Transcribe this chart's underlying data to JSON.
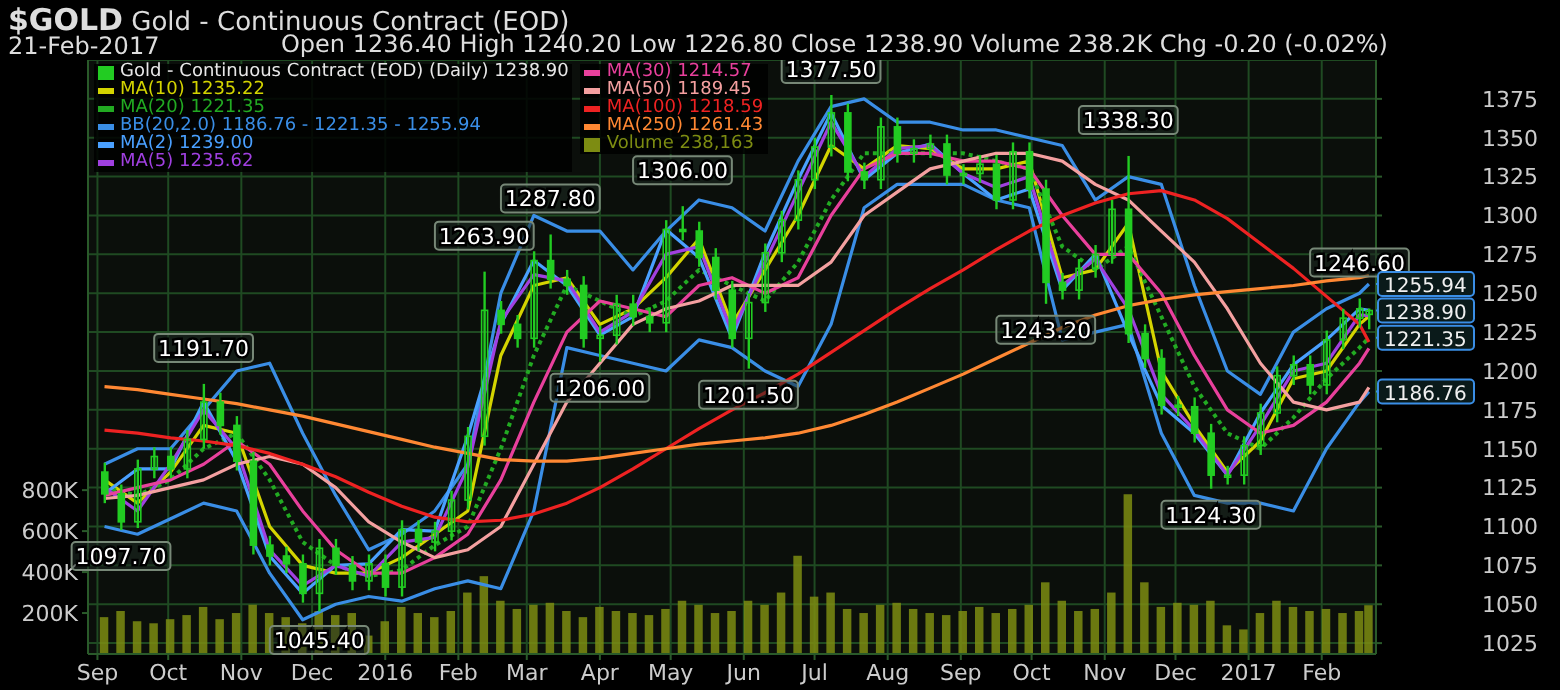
{
  "chart_data": {
    "type": "candlestick",
    "title": "$GOLD Gold - Continuous Contract (EOD)",
    "subtitle": "21-Feb-2017",
    "annotations": [
      "Open 1236.40 High 1240.20 Low 1226.80 Close 1238.90 Volume 238.2K Chg -0.20 (-0.02%)",
      {
        "text": "1097.70",
        "x": "2015-09-11",
        "y": 1097.7
      },
      {
        "text": "1191.70",
        "x": "2015-10-16",
        "y": 1191.7
      },
      {
        "text": "1045.40",
        "x": "2015-12-04",
        "y": 1045.4
      },
      {
        "text": "1263.90",
        "x": "2016-02-12",
        "y": 1263.9
      },
      {
        "text": "1287.80",
        "x": "2016-03-11",
        "y": 1287.8
      },
      {
        "text": "1206.00",
        "x": "2016-04-01",
        "y": 1206
      },
      {
        "text": "1306.00",
        "x": "2016-05-06",
        "y": 1306
      },
      {
        "text": "1201.50",
        "x": "2016-06-03",
        "y": 1201.5
      },
      {
        "text": "1377.50",
        "x": "2016-07-08",
        "y": 1377.5
      },
      {
        "text": "1243.20",
        "x": "2016-10-07",
        "y": 1243.2
      },
      {
        "text": "1338.30",
        "x": "2016-11-11",
        "y": 1338.3
      },
      {
        "text": "1124.30",
        "x": "2016-12-16",
        "y": 1124.3
      },
      {
        "text": "1246.60",
        "x": "2017-02-17",
        "y": 1246.6
      },
      {
        "text": "1255.94",
        "x": "2017-02-24",
        "y": 1255.94
      },
      {
        "text": "1238.90",
        "x": "2017-02-24",
        "y": 1238.9
      },
      {
        "text": "1221.35",
        "x": "2017-02-24",
        "y": 1221.35
      },
      {
        "text": "1186.76",
        "x": "2017-02-24",
        "y": 1186.76
      }
    ],
    "x": [
      "2015-09-04",
      "2015-09-18",
      "2015-10-02",
      "2015-10-16",
      "2015-10-30",
      "2015-11-13",
      "2015-11-27",
      "2015-12-11",
      "2015-12-25",
      "2016-01-08",
      "2016-01-22",
      "2016-02-05",
      "2016-02-19",
      "2016-03-04",
      "2016-03-18",
      "2016-04-01",
      "2016-04-15",
      "2016-04-29",
      "2016-05-13",
      "2016-05-27",
      "2016-06-10",
      "2016-06-24",
      "2016-07-08",
      "2016-07-22",
      "2016-08-05",
      "2016-08-19",
      "2016-09-02",
      "2016-09-16",
      "2016-09-30",
      "2016-10-14",
      "2016-10-28",
      "2016-11-11",
      "2016-11-25",
      "2016-12-09",
      "2016-12-23",
      "2017-01-06",
      "2017-01-20",
      "2017-02-03",
      "2017-02-17",
      "2017-02-21"
    ],
    "series": [
      {
        "name": "Gold - Continuous Contract (EOD) (Daily) 1238.90",
        "color": "#22cc22",
        "x": [
          "2015-09-04",
          "2015-09-11",
          "2015-09-18",
          "2015-09-25",
          "2015-10-02",
          "2015-10-09",
          "2015-10-16",
          "2015-10-23",
          "2015-10-30",
          "2015-11-06",
          "2015-11-13",
          "2015-11-20",
          "2015-11-27",
          "2015-12-04",
          "2015-12-11",
          "2015-12-18",
          "2015-12-25",
          "2016-01-01",
          "2016-01-08",
          "2016-01-15",
          "2016-01-22",
          "2016-01-29",
          "2016-02-05",
          "2016-02-12",
          "2016-02-19",
          "2016-02-26",
          "2016-03-04",
          "2016-03-11",
          "2016-03-18",
          "2016-03-25",
          "2016-04-01",
          "2016-04-08",
          "2016-04-15",
          "2016-04-22",
          "2016-04-29",
          "2016-05-06",
          "2016-05-13",
          "2016-05-20",
          "2016-05-27",
          "2016-06-03",
          "2016-06-10",
          "2016-06-17",
          "2016-06-24",
          "2016-07-01",
          "2016-07-08",
          "2016-07-15",
          "2016-07-22",
          "2016-07-29",
          "2016-08-05",
          "2016-08-12",
          "2016-08-19",
          "2016-08-26",
          "2016-09-02",
          "2016-09-09",
          "2016-09-16",
          "2016-09-23",
          "2016-09-30",
          "2016-10-07",
          "2016-10-14",
          "2016-10-21",
          "2016-10-28",
          "2016-11-04",
          "2016-11-11",
          "2016-11-18",
          "2016-11-25",
          "2016-12-02",
          "2016-12-09",
          "2016-12-16",
          "2016-12-23",
          "2016-12-30",
          "2017-01-06",
          "2017-01-13",
          "2017-01-20",
          "2017-01-27",
          "2017-02-03",
          "2017-02-10",
          "2017-02-17",
          "2017-02-21"
        ],
        "ohlc": [
          [
            1135,
            1141,
            1115,
            1121
          ],
          [
            1121,
            1127,
            1097.7,
            1103
          ],
          [
            1103,
            1143,
            1099,
            1137
          ],
          [
            1137,
            1151,
            1131,
            1145
          ],
          [
            1145,
            1151,
            1131,
            1137
          ],
          [
            1137,
            1162,
            1131,
            1156
          ],
          [
            1156,
            1191.7,
            1150,
            1180
          ],
          [
            1180,
            1186,
            1159,
            1165
          ],
          [
            1165,
            1171,
            1136,
            1142
          ],
          [
            1142,
            1148,
            1082,
            1088
          ],
          [
            1088,
            1094,
            1075,
            1081
          ],
          [
            1081,
            1087,
            1070,
            1076
          ],
          [
            1076,
            1082,
            1051,
            1057
          ],
          [
            1057,
            1092,
            1045.4,
            1086
          ],
          [
            1086,
            1092,
            1069,
            1075
          ],
          [
            1075,
            1081,
            1059,
            1065
          ],
          [
            1065,
            1082,
            1059,
            1076
          ],
          [
            1076,
            1082,
            1055,
            1061
          ],
          [
            1061,
            1104,
            1055,
            1098
          ],
          [
            1098,
            1104,
            1084,
            1090
          ],
          [
            1090,
            1103,
            1084,
            1097
          ],
          [
            1097,
            1123,
            1091,
            1117
          ],
          [
            1117,
            1164,
            1111,
            1158
          ],
          [
            1158,
            1263.9,
            1152,
            1239
          ],
          [
            1239,
            1245,
            1224,
            1230
          ],
          [
            1230,
            1236,
            1215,
            1221
          ],
          [
            1221,
            1277,
            1215,
            1271
          ],
          [
            1271,
            1287.8,
            1253,
            1259
          ],
          [
            1259,
            1265,
            1249,
            1255
          ],
          [
            1255,
            1261,
            1215,
            1221
          ],
          [
            1221,
            1229,
            1206,
            1223
          ],
          [
            1223,
            1249,
            1217,
            1243
          ],
          [
            1243,
            1249,
            1229,
            1235
          ],
          [
            1235,
            1241,
            1225,
            1231
          ],
          [
            1231,
            1297,
            1225,
            1291
          ],
          [
            1291,
            1306,
            1284,
            1290
          ],
          [
            1290,
            1296,
            1267,
            1273
          ],
          [
            1273,
            1279,
            1246,
            1252
          ],
          [
            1252,
            1258,
            1215,
            1221
          ],
          [
            1221,
            1250,
            1201.5,
            1244
          ],
          [
            1244,
            1282,
            1238,
            1276
          ],
          [
            1276,
            1303,
            1270,
            1297
          ],
          [
            1297,
            1329,
            1291,
            1323
          ],
          [
            1323,
            1350,
            1317,
            1344
          ],
          [
            1344,
            1377.5,
            1338,
            1366
          ],
          [
            1366,
            1372,
            1322,
            1328
          ],
          [
            1328,
            1334,
            1317,
            1323
          ],
          [
            1323,
            1363,
            1317,
            1357
          ],
          [
            1357,
            1363,
            1334,
            1340
          ],
          [
            1340,
            1349,
            1334,
            1343
          ],
          [
            1343,
            1352,
            1337,
            1346
          ],
          [
            1346,
            1352,
            1320,
            1326
          ],
          [
            1326,
            1333,
            1320,
            1327
          ],
          [
            1327,
            1339,
            1321,
            1333
          ],
          [
            1333,
            1339,
            1304,
            1310
          ],
          [
            1310,
            1347,
            1304,
            1341
          ],
          [
            1341,
            1347,
            1311,
            1317
          ],
          [
            1317,
            1323,
            1243.2,
            1257
          ],
          [
            1257,
            1263,
            1246,
            1252
          ],
          [
            1252,
            1272,
            1246,
            1266
          ],
          [
            1266,
            1281,
            1260,
            1275
          ],
          [
            1275,
            1310,
            1269,
            1304
          ],
          [
            1304,
            1338.3,
            1218,
            1224
          ],
          [
            1224,
            1230,
            1202,
            1208
          ],
          [
            1208,
            1214,
            1172,
            1178
          ],
          [
            1178,
            1184,
            1171,
            1177
          ],
          [
            1177,
            1183,
            1154,
            1160
          ],
          [
            1160,
            1166,
            1124.3,
            1133
          ],
          [
            1133,
            1139,
            1127,
            1133
          ],
          [
            1133,
            1158,
            1127,
            1152
          ],
          [
            1152,
            1179,
            1146,
            1173
          ],
          [
            1173,
            1203,
            1167,
            1197
          ],
          [
            1197,
            1210,
            1191,
            1204
          ],
          [
            1204,
            1210,
            1185,
            1191
          ],
          [
            1191,
            1226,
            1185,
            1220
          ],
          [
            1220,
            1240,
            1214,
            1234
          ],
          [
            1234,
            1246.6,
            1228,
            1240
          ],
          [
            1236.4,
            1240.2,
            1226.8,
            1238.9
          ]
        ]
      },
      {
        "type": "line",
        "name": "MA(10) 1235.22",
        "color": "#d4d400",
        "values": [
          1130,
          1115,
          1135,
          1165,
          1160,
          1100,
          1075,
          1070,
          1070,
          1080,
          1095,
          1110,
          1210,
          1255,
          1260,
          1230,
          1240,
          1260,
          1285,
          1230,
          1265,
          1300,
          1345,
          1330,
          1345,
          1343,
          1330,
          1330,
          1335,
          1260,
          1265,
          1295,
          1200,
          1165,
          1135,
          1155,
          1195,
          1200,
          1230,
          1235.22
        ]
      },
      {
        "type": "line",
        "name": "MA(20) 1221.35",
        "color": "#22aa22",
        "line_style": "dotted",
        "values": [
          1125,
          1120,
          1130,
          1150,
          1160,
          1130,
          1090,
          1075,
          1068,
          1072,
          1088,
          1100,
          1150,
          1210,
          1255,
          1245,
          1235,
          1245,
          1265,
          1255,
          1245,
          1270,
          1310,
          1340,
          1340,
          1340,
          1340,
          1335,
          1330,
          1280,
          1265,
          1280,
          1235,
          1190,
          1160,
          1150,
          1170,
          1195,
          1215,
          1221.35
        ]
      },
      {
        "type": "line",
        "name": "BB(20,2.0) 1186.76 - 1221.35 - 1255.94",
        "color": "#3a8ee6",
        "values": [
          1140,
          1150,
          1150,
          1175,
          1200,
          1205,
          1160,
          1120,
          1085,
          1095,
          1110,
          1140,
          1250,
          1300,
          1290,
          1290,
          1265,
          1290,
          1310,
          1305,
          1290,
          1335,
          1370,
          1375,
          1360,
          1360,
          1355,
          1355,
          1350,
          1345,
          1310,
          1325,
          1320,
          1255,
          1200,
          1185,
          1225,
          1240,
          1250,
          1255.94
        ]
      },
      {
        "type": "line",
        "color": "#3a8ee6",
        "values": [
          1100,
          1095,
          1105,
          1115,
          1110,
          1070,
          1040,
          1050,
          1055,
          1052,
          1060,
          1065,
          1060,
          1110,
          1215,
          1210,
          1205,
          1200,
          1220,
          1215,
          1200,
          1190,
          1230,
          1305,
          1320,
          1320,
          1320,
          1310,
          1305,
          1220,
          1225,
          1230,
          1160,
          1120,
          1115,
          1115,
          1110,
          1150,
          1180,
          1186.76
        ]
      },
      {
        "type": "line",
        "name": "MA(2) 1239.00",
        "color": "#4aa0ff",
        "values": [
          1121,
          1137,
          1137,
          1180,
          1142,
          1081,
          1057,
          1075,
          1076,
          1098,
          1097,
          1158,
          1230,
          1271,
          1255,
          1223,
          1235,
          1291,
          1273,
          1221,
          1276,
          1323,
          1366,
          1323,
          1340,
          1346,
          1327,
          1310,
          1317,
          1252,
          1275,
          1224,
          1178,
          1160,
          1133,
          1173,
          1204,
          1220,
          1240,
          1239.0
        ]
      },
      {
        "type": "line",
        "name": "MA(5) 1235.62",
        "color": "#a040e0",
        "values": [
          1125,
          1110,
          1140,
          1175,
          1150,
          1085,
          1062,
          1075,
          1068,
          1090,
          1093,
          1138,
          1232,
          1262,
          1258,
          1225,
          1238,
          1275,
          1280,
          1225,
          1270,
          1315,
          1360,
          1325,
          1343,
          1345,
          1327,
          1318,
          1325,
          1255,
          1272,
          1240,
          1185,
          1162,
          1133,
          1165,
          1200,
          1205,
          1236,
          1235.62
        ]
      },
      {
        "type": "line",
        "name": "MA(30) 1214.57",
        "color": "#e8409c",
        "values": [
          1120,
          1125,
          1130,
          1140,
          1155,
          1140,
          1110,
          1085,
          1070,
          1070,
          1080,
          1095,
          1130,
          1180,
          1225,
          1245,
          1240,
          1235,
          1255,
          1260,
          1250,
          1260,
          1300,
          1330,
          1340,
          1340,
          1335,
          1335,
          1330,
          1300,
          1275,
          1275,
          1250,
          1210,
          1175,
          1160,
          1165,
          1180,
          1205,
          1214.57
        ]
      },
      {
        "type": "line",
        "name": "MA(50) 1189.45",
        "color": "#f4a0a0",
        "values": [
          1118,
          1120,
          1125,
          1130,
          1140,
          1145,
          1140,
          1125,
          1103,
          1090,
          1080,
          1085,
          1100,
          1140,
          1180,
          1205,
          1230,
          1240,
          1245,
          1255,
          1255,
          1255,
          1270,
          1300,
          1315,
          1330,
          1335,
          1340,
          1340,
          1335,
          1320,
          1310,
          1290,
          1270,
          1240,
          1205,
          1180,
          1175,
          1180,
          1189.45
        ]
      },
      {
        "type": "line",
        "name": "MA(100) 1218.59",
        "color": "#ee2222",
        "values": [
          1162,
          1160,
          1157,
          1155,
          1152,
          1147,
          1140,
          1132,
          1122,
          1113,
          1106,
          1103,
          1104,
          1108,
          1115,
          1125,
          1137,
          1150,
          1163,
          1175,
          1186,
          1198,
          1212,
          1226,
          1240,
          1253,
          1265,
          1278,
          1290,
          1300,
          1308,
          1314,
          1316,
          1310,
          1298,
          1282,
          1266,
          1248,
          1230,
          1218.59
        ]
      },
      {
        "type": "line",
        "name": "MA(250) 1261.43",
        "color": "#ff8833",
        "values": [
          1190,
          1188,
          1185,
          1182,
          1179,
          1175,
          1171,
          1166,
          1161,
          1156,
          1151,
          1147,
          1143,
          1142,
          1142,
          1144,
          1147,
          1150,
          1153,
          1155,
          1157,
          1160,
          1165,
          1172,
          1180,
          1189,
          1198,
          1208,
          1218,
          1228,
          1236,
          1242,
          1246,
          1249,
          1251,
          1253,
          1255,
          1258,
          1260,
          1261.43
        ]
      },
      {
        "type": "bar",
        "axis": "y2",
        "name": "Volume 238,163",
        "color": "#7d8c12",
        "x": [
          "2015-09-04",
          "2015-09-11",
          "2015-09-18",
          "2015-09-25",
          "2015-10-02",
          "2015-10-09",
          "2015-10-16",
          "2015-10-23",
          "2015-10-30",
          "2015-11-06",
          "2015-11-13",
          "2015-11-20",
          "2015-11-27",
          "2015-12-04",
          "2015-12-11",
          "2015-12-18",
          "2015-12-25",
          "2016-01-01",
          "2016-01-08",
          "2016-01-15",
          "2016-01-22",
          "2016-01-29",
          "2016-02-05",
          "2016-02-12",
          "2016-02-19",
          "2016-02-26",
          "2016-03-04",
          "2016-03-11",
          "2016-03-18",
          "2016-03-25",
          "2016-04-01",
          "2016-04-08",
          "2016-04-15",
          "2016-04-22",
          "2016-04-29",
          "2016-05-06",
          "2016-05-13",
          "2016-05-20",
          "2016-05-27",
          "2016-06-03",
          "2016-06-10",
          "2016-06-17",
          "2016-06-24",
          "2016-07-01",
          "2016-07-08",
          "2016-07-15",
          "2016-07-22",
          "2016-07-29",
          "2016-08-05",
          "2016-08-12",
          "2016-08-19",
          "2016-08-26",
          "2016-09-02",
          "2016-09-09",
          "2016-09-16",
          "2016-09-23",
          "2016-09-30",
          "2016-10-07",
          "2016-10-14",
          "2016-10-21",
          "2016-10-28",
          "2016-11-04",
          "2016-11-11",
          "2016-11-18",
          "2016-11-25",
          "2016-12-02",
          "2016-12-09",
          "2016-12-16",
          "2016-12-23",
          "2016-12-30",
          "2017-01-06",
          "2017-01-13",
          "2017-01-20",
          "2017-01-27",
          "2017-02-03",
          "2017-02-10",
          "2017-02-17",
          "2017-02-21"
        ],
        "values": [
          180000,
          210000,
          160000,
          150000,
          170000,
          190000,
          230000,
          170000,
          200000,
          240000,
          200000,
          180000,
          150000,
          210000,
          190000,
          200000,
          90000,
          160000,
          230000,
          200000,
          180000,
          210000,
          300000,
          380000,
          260000,
          220000,
          240000,
          250000,
          210000,
          180000,
          230000,
          210000,
          200000,
          190000,
          220000,
          260000,
          240000,
          200000,
          210000,
          260000,
          240000,
          300000,
          480000,
          280000,
          300000,
          220000,
          200000,
          240000,
          250000,
          220000,
          200000,
          190000,
          210000,
          230000,
          200000,
          220000,
          240000,
          350000,
          260000,
          210000,
          220000,
          300000,
          780000,
          350000,
          230000,
          250000,
          240000,
          260000,
          140000,
          120000,
          200000,
          260000,
          230000,
          210000,
          220000,
          200000,
          210000,
          238163
        ]
      }
    ],
    "xlim": [
      "2015-08-28",
      "2017-02-24"
    ],
    "xticks": [
      {
        "value": "2015-09-01",
        "label": "Sep"
      },
      {
        "value": "2015-10-01",
        "label": "Oct"
      },
      {
        "value": "2015-11-01",
        "label": "Nov"
      },
      {
        "value": "2015-12-01",
        "label": "Dec"
      },
      {
        "value": "2016-01-01",
        "label": "2016"
      },
      {
        "value": "2016-02-01",
        "label": "Feb"
      },
      {
        "value": "2016-03-01",
        "label": "Mar"
      },
      {
        "value": "2016-04-01",
        "label": "Apr"
      },
      {
        "value": "2016-05-01",
        "label": "May"
      },
      {
        "value": "2016-06-01",
        "label": "Jun"
      },
      {
        "value": "2016-07-01",
        "label": "Jul"
      },
      {
        "value": "2016-08-01",
        "label": "Aug"
      },
      {
        "value": "2016-09-01",
        "label": "Sep"
      },
      {
        "value": "2016-10-01",
        "label": "Oct"
      },
      {
        "value": "2016-11-01",
        "label": "Nov"
      },
      {
        "value": "2016-12-01",
        "label": "Dec"
      },
      {
        "value": "2017-01-01",
        "label": "2017"
      },
      {
        "value": "2017-02-01",
        "label": "Feb"
      }
    ],
    "ylim": [
      1018,
      1400
    ],
    "yticks": [
      1025,
      1050,
      1075,
      1100,
      1125,
      1150,
      1175,
      1200,
      1225,
      1250,
      1275,
      1300,
      1325,
      1350,
      1375
    ],
    "y2lim": [
      0,
      2900000
    ],
    "y2ticks": [
      {
        "value": 200000,
        "label": "200K"
      },
      {
        "value": 400000,
        "label": "400K"
      },
      {
        "value": 600000,
        "label": "600K"
      },
      {
        "value": 800000,
        "label": "800K"
      }
    ],
    "grid": true,
    "legend": "top left",
    "marker": "none"
  }
}
